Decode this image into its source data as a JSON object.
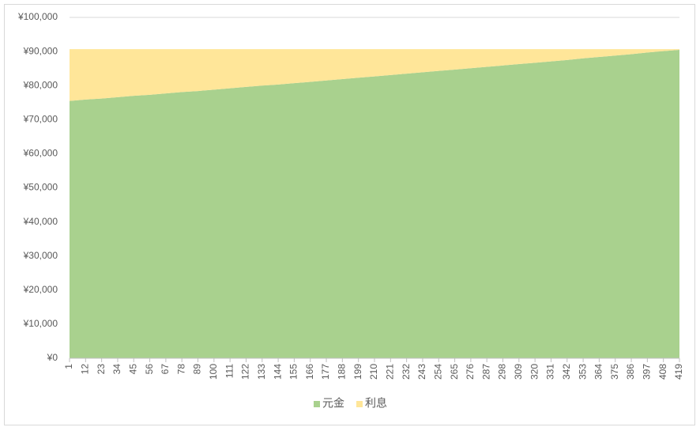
{
  "chart_data": {
    "type": "stacked-area",
    "x": [
      1,
      12,
      23,
      34,
      45,
      56,
      67,
      78,
      89,
      100,
      111,
      122,
      133,
      144,
      155,
      166,
      177,
      188,
      199,
      210,
      221,
      232,
      243,
      254,
      265,
      276,
      287,
      298,
      309,
      320,
      331,
      342,
      353,
      364,
      375,
      386,
      397,
      408,
      419
    ],
    "xlim": [
      1,
      419
    ],
    "xticks": [
      1,
      12,
      23,
      34,
      45,
      56,
      67,
      78,
      89,
      100,
      111,
      122,
      133,
      144,
      155,
      166,
      177,
      188,
      199,
      210,
      221,
      232,
      243,
      254,
      265,
      276,
      287,
      298,
      309,
      320,
      331,
      342,
      353,
      364,
      375,
      386,
      397,
      408,
      419
    ],
    "ylim": [
      0,
      100000
    ],
    "yticks": [
      {
        "value": 0,
        "label": "¥0"
      },
      {
        "value": 10000,
        "label": "¥10,000"
      },
      {
        "value": 20000,
        "label": "¥20,000"
      },
      {
        "value": 30000,
        "label": "¥30,000"
      },
      {
        "value": 40000,
        "label": "¥40,000"
      },
      {
        "value": 50000,
        "label": "¥50,000"
      },
      {
        "value": 60000,
        "label": "¥60,000"
      },
      {
        "value": 70000,
        "label": "¥70,000"
      },
      {
        "value": 80000,
        "label": "¥80,000"
      },
      {
        "value": 90000,
        "label": "¥90,000"
      },
      {
        "value": 100000,
        "label": "¥100,000"
      }
    ],
    "grid": true,
    "legend": "bottom",
    "series": [
      {
        "name": "元金",
        "color": "#a9d18e",
        "values": [
          75500,
          75900,
          76200,
          76600,
          77000,
          77300,
          77700,
          78100,
          78400,
          78800,
          79200,
          79600,
          80000,
          80300,
          80700,
          81100,
          81500,
          81900,
          82300,
          82700,
          83100,
          83500,
          83900,
          84300,
          84700,
          85100,
          85500,
          85900,
          86300,
          86700,
          87100,
          87500,
          88000,
          88400,
          88800,
          89200,
          89700,
          90100,
          90500
        ]
      },
      {
        "name": "利息",
        "color": "#ffe699",
        "values": [
          15200,
          14800,
          14500,
          14100,
          13700,
          13400,
          13000,
          12600,
          12300,
          11900,
          11500,
          11100,
          10700,
          10400,
          10000,
          9600,
          9200,
          8800,
          8400,
          8000,
          7600,
          7200,
          6800,
          6400,
          6000,
          5600,
          5200,
          4800,
          4400,
          4000,
          3600,
          3200,
          2700,
          2300,
          1900,
          1500,
          1000,
          600,
          200
        ]
      }
    ]
  }
}
